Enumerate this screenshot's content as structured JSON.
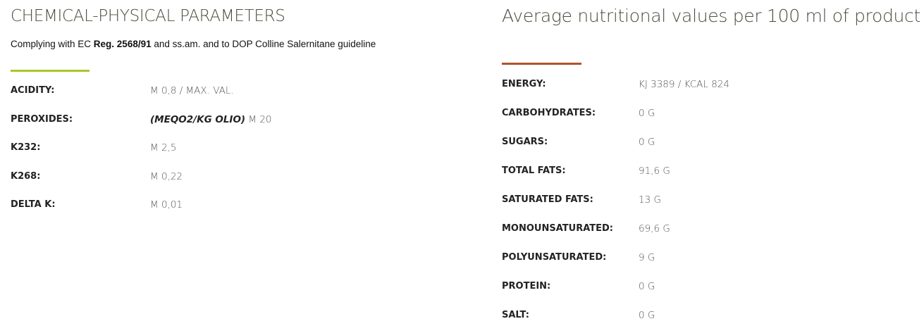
{
  "colors": {
    "left_accent": "#a8c82a",
    "right_accent": "#b0532b"
  },
  "left": {
    "title": "CHEMICAL-PHYSICAL PARAMETERS",
    "subtitle": {
      "pre": "Complying with EC ",
      "bold": "Reg. 2568/91",
      "post": " and ss.am. and to DOP Colline Salernitane guideline"
    },
    "rows": [
      {
        "label": "ACIDITY:",
        "value": "M 0,8 / MAX. VAL."
      },
      {
        "label": "PEROXIDES:",
        "value_em": "(MEQO2/KG OLIO)",
        "value": " M 20"
      },
      {
        "label": "K232:",
        "value": "M 2,5"
      },
      {
        "label": "K268:",
        "value": "M 0,22"
      },
      {
        "label": "DELTA K:",
        "value": "M 0,01"
      }
    ]
  },
  "right": {
    "title": "Average nutritional values per 100 ml of product",
    "rows": [
      {
        "label": "ENERGY:",
        "value": "KJ 3389 / KCAL 824"
      },
      {
        "label": "CARBOHYDRATES:",
        "value": "0 G"
      },
      {
        "label": "SUGARS:",
        "value": "0 G"
      },
      {
        "label": "TOTAL FATS:",
        "value": "91,6 G"
      },
      {
        "label": "SATURATED FATS:",
        "value": "13 G"
      },
      {
        "label": "MONOUNSATURATED:",
        "value": "69,6 G"
      },
      {
        "label": "POLYUNSATURATED:",
        "value": "9 G"
      },
      {
        "label": "PROTEIN:",
        "value": "0 G"
      },
      {
        "label": "SALT:",
        "value": "0 G"
      }
    ]
  }
}
